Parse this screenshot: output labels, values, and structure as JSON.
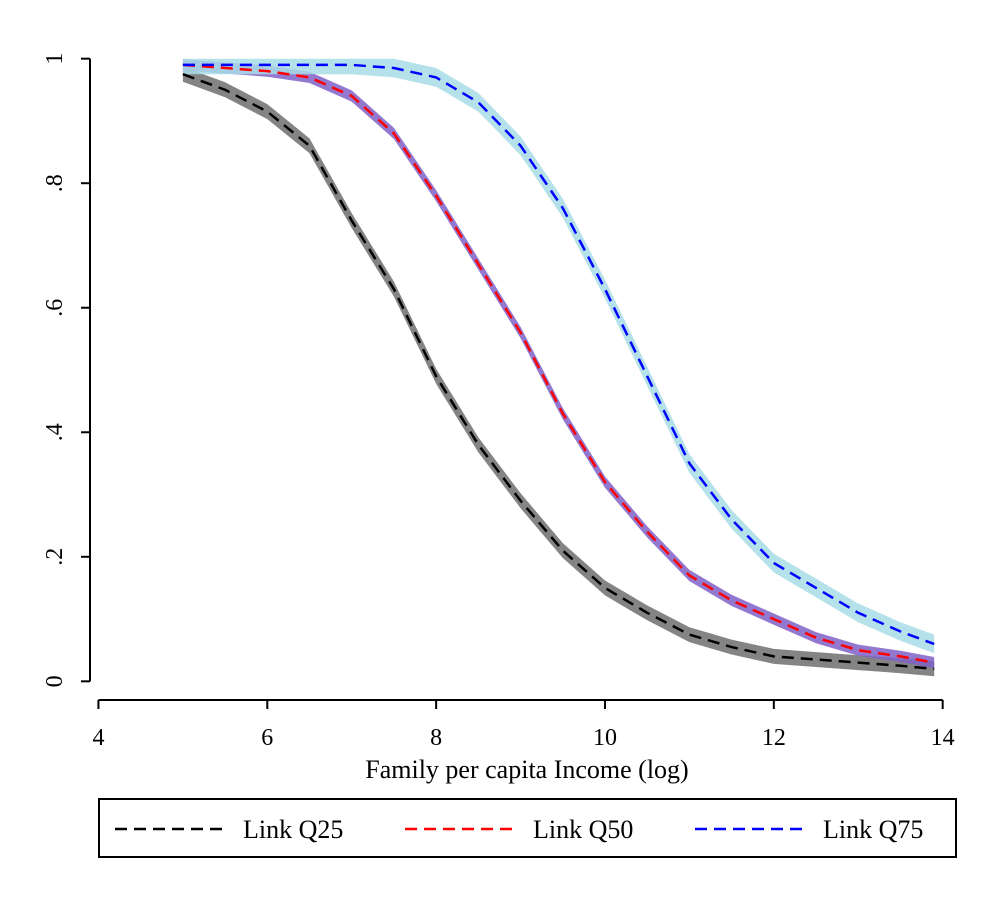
{
  "chart_data": {
    "type": "line",
    "title": "",
    "xlabel": "Family per capita Income (log)",
    "ylabel": "",
    "xlim": [
      3.9,
      14.3
    ],
    "ylim": [
      -0.03,
      1.03
    ],
    "xticks": [
      4,
      6,
      8,
      10,
      12,
      14
    ],
    "xtick_labels": [
      "4",
      "6",
      "8",
      "10",
      "12",
      "14"
    ],
    "yticks": [
      0,
      0.2,
      0.4,
      0.6,
      0.8,
      1
    ],
    "ytick_labels": [
      "0",
      ".2",
      ".4",
      ".6",
      ".8",
      "1"
    ],
    "grid": false,
    "legend_position": "bottom",
    "series": [
      {
        "name": "Link Q25",
        "color": "#000000",
        "band_color": "#6e6e6e",
        "band_halfwidth": 0.012,
        "x": [
          5.0,
          5.5,
          6.0,
          6.5,
          7.0,
          7.5,
          8.0,
          8.5,
          9.0,
          9.5,
          10.0,
          10.5,
          11.0,
          11.5,
          12.0,
          12.5,
          13.0,
          13.5,
          13.9
        ],
        "y": [
          0.975,
          0.95,
          0.915,
          0.86,
          0.74,
          0.63,
          0.49,
          0.38,
          0.29,
          0.21,
          0.15,
          0.11,
          0.075,
          0.055,
          0.04,
          0.035,
          0.03,
          0.025,
          0.02
        ]
      },
      {
        "name": "Link Q50",
        "color": "#ff0000",
        "band_color": "#8060c8",
        "band_halfwidth": 0.009,
        "x": [
          5.0,
          6.0,
          6.5,
          7.0,
          7.5,
          8.0,
          8.5,
          9.0,
          9.5,
          10.0,
          10.5,
          11.0,
          11.5,
          12.0,
          12.5,
          13.0,
          13.5,
          13.9
        ],
        "y": [
          0.99,
          0.98,
          0.97,
          0.94,
          0.88,
          0.78,
          0.67,
          0.56,
          0.43,
          0.32,
          0.24,
          0.17,
          0.13,
          0.1,
          0.07,
          0.05,
          0.04,
          0.03
        ]
      },
      {
        "name": "Link Q75",
        "color": "#0000ff",
        "band_color": "#a8dce6",
        "band_halfwidth": 0.015,
        "x": [
          5.0,
          6.0,
          7.0,
          7.5,
          8.0,
          8.5,
          9.0,
          9.5,
          10.0,
          10.5,
          11.0,
          11.5,
          12.0,
          12.5,
          13.0,
          13.5,
          13.9
        ],
        "y": [
          0.99,
          0.99,
          0.99,
          0.985,
          0.97,
          0.93,
          0.86,
          0.76,
          0.63,
          0.49,
          0.35,
          0.26,
          0.19,
          0.15,
          0.11,
          0.08,
          0.06
        ]
      }
    ]
  }
}
